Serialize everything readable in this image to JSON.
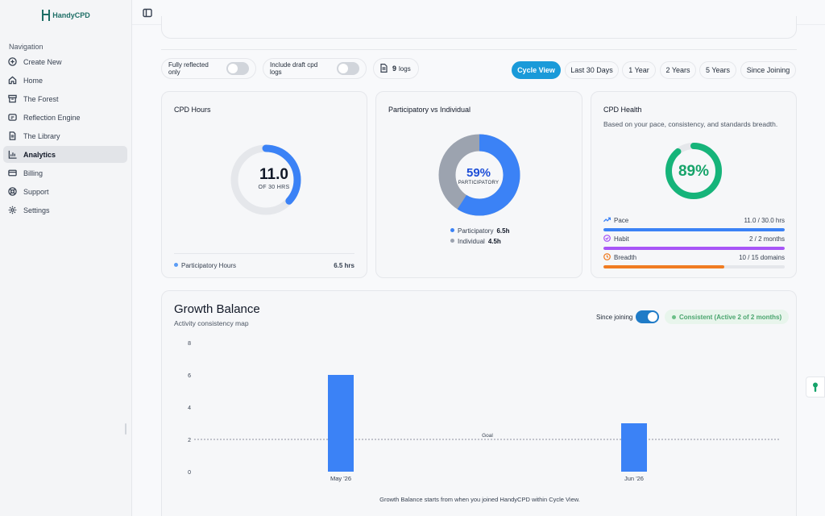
{
  "app": {
    "logo_text": "HandyCPD"
  },
  "sidebar": {
    "heading": "Navigation",
    "items": [
      {
        "label": "Create New",
        "icon": "plus-circle-icon"
      },
      {
        "label": "Home",
        "icon": "home-icon"
      },
      {
        "label": "The Forest",
        "icon": "archive-icon"
      },
      {
        "label": "Reflection Engine",
        "icon": "sparkles-icon"
      },
      {
        "label": "The Library",
        "icon": "document-icon"
      },
      {
        "label": "Analytics",
        "icon": "bar-chart-icon",
        "active": true
      },
      {
        "label": "Billing",
        "icon": "credit-card-icon"
      },
      {
        "label": "Support",
        "icon": "lifebuoy-icon"
      },
      {
        "label": "Settings",
        "icon": "gear-icon"
      }
    ]
  },
  "filters": {
    "fully_reflected_label": "Fully reflected only",
    "fully_reflected_on": false,
    "draft_label": "Include draft cpd logs",
    "draft_on": false,
    "logs_count": "9",
    "logs_label": "logs"
  },
  "ranges": [
    {
      "label": "Cycle View",
      "active": true
    },
    {
      "label": "Last 30 Days"
    },
    {
      "label": "1 Year"
    },
    {
      "label": "2 Years"
    },
    {
      "label": "5 Years"
    },
    {
      "label": "Since Joining"
    }
  ],
  "cpd_hours": {
    "title": "CPD Hours",
    "value": "11.0",
    "target_label": "OF 30 HRS",
    "progress_fraction": 0.367,
    "legend_label": "Participatory Hours",
    "legend_value": "6.5 hrs",
    "color": "#3b82f6"
  },
  "participation": {
    "title": "Participatory vs Individual",
    "percent_label": "59%",
    "center_label": "PARTICIPATORY",
    "participatory_label": "Participatory",
    "participatory_value": "6.5h",
    "individual_label": "Individual",
    "individual_value": "4.5h",
    "participatory_fraction": 0.59,
    "participatory_color": "#3b82f6",
    "individual_color": "#9ca3af"
  },
  "health": {
    "title": "CPD Health",
    "subtitle": "Based on your pace, consistency, and standards breadth.",
    "percent_label": "89%",
    "fraction": 0.89,
    "color": "#16b47a",
    "metrics": [
      {
        "label": "Pace",
        "value": "11.0 / 30.0 hrs",
        "fraction": 1.0,
        "color": "#3b82f6",
        "icon": "trending-up-icon"
      },
      {
        "label": "Habit",
        "value": "2 / 2 months",
        "fraction": 1.0,
        "color": "#a855f7",
        "icon": "check-circle-icon"
      },
      {
        "label": "Breadth",
        "value": "10 / 15 domains",
        "fraction": 0.667,
        "color": "#f07c22",
        "icon": "clock-icon"
      }
    ]
  },
  "growth": {
    "title": "Growth Balance",
    "subtitle": "Activity consistency map",
    "since_label": "Since joining",
    "since_on": true,
    "badge": "Consistent (Active 2 of 2 months)",
    "footnote": "Growth Balance starts from when you joined HandyCPD within Cycle View."
  },
  "chart_data": {
    "type": "bar",
    "categories": [
      "May '26",
      "Jun '26"
    ],
    "values": [
      6,
      3
    ],
    "ylim": [
      0,
      8
    ],
    "yticks": [
      "0",
      "2",
      "4",
      "6",
      "8"
    ],
    "goal": 2,
    "goal_label": "Goal",
    "bar_color": "#3b82f6",
    "grid": false
  }
}
